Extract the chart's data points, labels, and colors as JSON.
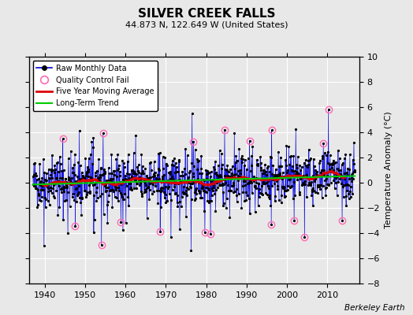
{
  "title": "SILVER CREEK FALLS",
  "subtitle": "44.873 N, 122.649 W (United States)",
  "ylabel": "Temperature Anomaly (°C)",
  "xlabel_note": "Berkeley Earth",
  "xlim": [
    1936,
    2018
  ],
  "ylim": [
    -8,
    10
  ],
  "yticks": [
    -8,
    -6,
    -4,
    -2,
    0,
    2,
    4,
    6,
    8,
    10
  ],
  "xticks": [
    1940,
    1950,
    1960,
    1970,
    1980,
    1990,
    2000,
    2010
  ],
  "bg_color": "#e8e8e8",
  "grid_color": "#ffffff",
  "raw_line_color": "#0000dd",
  "raw_marker_color": "#000000",
  "moving_avg_color": "#dd0000",
  "trend_color": "#00cc00",
  "qc_fail_color": "#ff69b4",
  "seed": 42,
  "n_points": 960,
  "start_year": 1937.0,
  "end_year": 2016.9
}
